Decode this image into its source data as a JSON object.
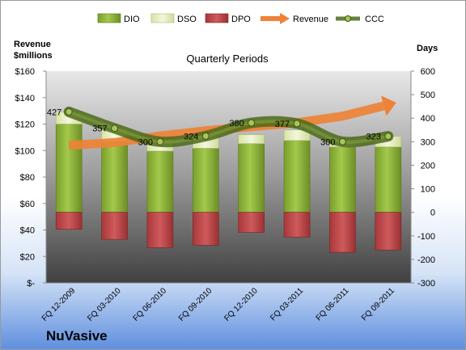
{
  "company": "NuVasive",
  "chart_data": {
    "type": "bar",
    "title": "Quarterly Periods",
    "left_axis_label": [
      "Revenue",
      "$millions"
    ],
    "right_axis_label": "Days",
    "categories": [
      "FQ 12-2009",
      "FQ 03-2010",
      "FQ 06-2010",
      "FQ 09-2010",
      "FQ 12-2010",
      "FQ 03-2011",
      "FQ 06-2011",
      "FQ 09-2011"
    ],
    "left_ticks": [
      "$-",
      "$20",
      "$40",
      "$60",
      "$80",
      "$100",
      "$120",
      "$140",
      "$160"
    ],
    "right_ticks": [
      "-300",
      "-200",
      "-100",
      "0",
      "100",
      "200",
      "300",
      "400",
      "500",
      "600"
    ],
    "left_ylim": [
      0,
      160
    ],
    "right_ylim": [
      -300,
      600
    ],
    "legend": [
      "DIO",
      "DSO",
      "DPO",
      "Revenue",
      "CCC"
    ],
    "legend_position": "top",
    "series": [
      {
        "name": "DIO",
        "axis": "right",
        "values": [
          375,
          300,
          260,
          272,
          292,
          305,
          278,
          278
        ]
      },
      {
        "name": "DSO",
        "axis": "right",
        "values": [
          52,
          57,
          50,
          52,
          38,
          45,
          22,
          45
        ]
      },
      {
        "name": "DPO",
        "axis": "right",
        "values": [
          -72,
          -115,
          -150,
          -140,
          -85,
          -105,
          -170,
          -160
        ]
      },
      {
        "name": "Revenue",
        "axis": "left",
        "values": [
          104,
          106,
          111,
          115,
          118,
          121,
          126,
          135
        ]
      },
      {
        "name": "CCC",
        "axis": "right",
        "values": [
          427,
          357,
          300,
          324,
          380,
          377,
          300,
          323
        ]
      }
    ],
    "ccc_labels": [
      "427",
      "357",
      "300",
      "324",
      "380",
      "377",
      "300",
      "323"
    ],
    "colors": {
      "DIO": "#8db33a",
      "DSO": "#e6efbf",
      "DPO": "#c0484a",
      "Revenue": "#ee8236",
      "CCC": "#5e7a24"
    }
  }
}
